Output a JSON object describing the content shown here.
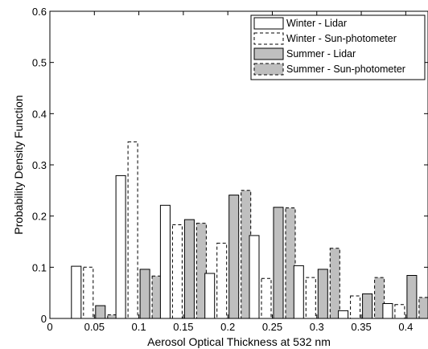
{
  "chart_data": {
    "type": "bar",
    "xlabel": "Aerosol Optical Thickness at 532 nm",
    "ylabel": "Probability Density Function",
    "xlim": [
      0,
      0.425
    ],
    "ylim": [
      0,
      0.6
    ],
    "xticks": [
      0,
      0.05,
      0.1,
      0.15,
      0.2,
      0.25,
      0.3,
      0.35,
      0.4
    ],
    "xtick_labels": [
      "0",
      "0.05",
      "0.1",
      "0.15",
      "0.2",
      "0.25",
      "0.3",
      "0.35",
      "0.4"
    ],
    "yticks": [
      0,
      0.1,
      0.2,
      0.3,
      0.4,
      0.5,
      0.6
    ],
    "ytick_labels": [
      "0",
      "0.1",
      "0.2",
      "0.3",
      "0.4",
      "0.5",
      "0.6"
    ],
    "categories": [
      0.05,
      0.1,
      0.15,
      0.2,
      0.25,
      0.3,
      0.35,
      0.4
    ],
    "legend_position": "top-right",
    "grid": false,
    "series": [
      {
        "name": "Winter - Lidar",
        "fill": "#ffffff",
        "line": "solid",
        "values": [
          0.102,
          0.279,
          0.221,
          0.088,
          0.162,
          0.103,
          0.015,
          0.029
        ]
      },
      {
        "name": "Winter - Sun-photometer",
        "fill": "#ffffff",
        "line": "dashed",
        "values": [
          0.1,
          0.345,
          0.183,
          0.147,
          0.078,
          0.08,
          0.044,
          0.027
        ]
      },
      {
        "name": "Summer - Lidar",
        "fill": "#bfbfbf",
        "line": "solid",
        "values": [
          0.025,
          0.096,
          0.193,
          0.241,
          0.217,
          0.096,
          0.048,
          0.084
        ]
      },
      {
        "name": "Summer - Sun-photometer",
        "fill": "#bfbfbf",
        "line": "dashed",
        "values": [
          0.007,
          0.083,
          0.186,
          0.25,
          0.216,
          0.137,
          0.08,
          0.041
        ]
      }
    ]
  }
}
